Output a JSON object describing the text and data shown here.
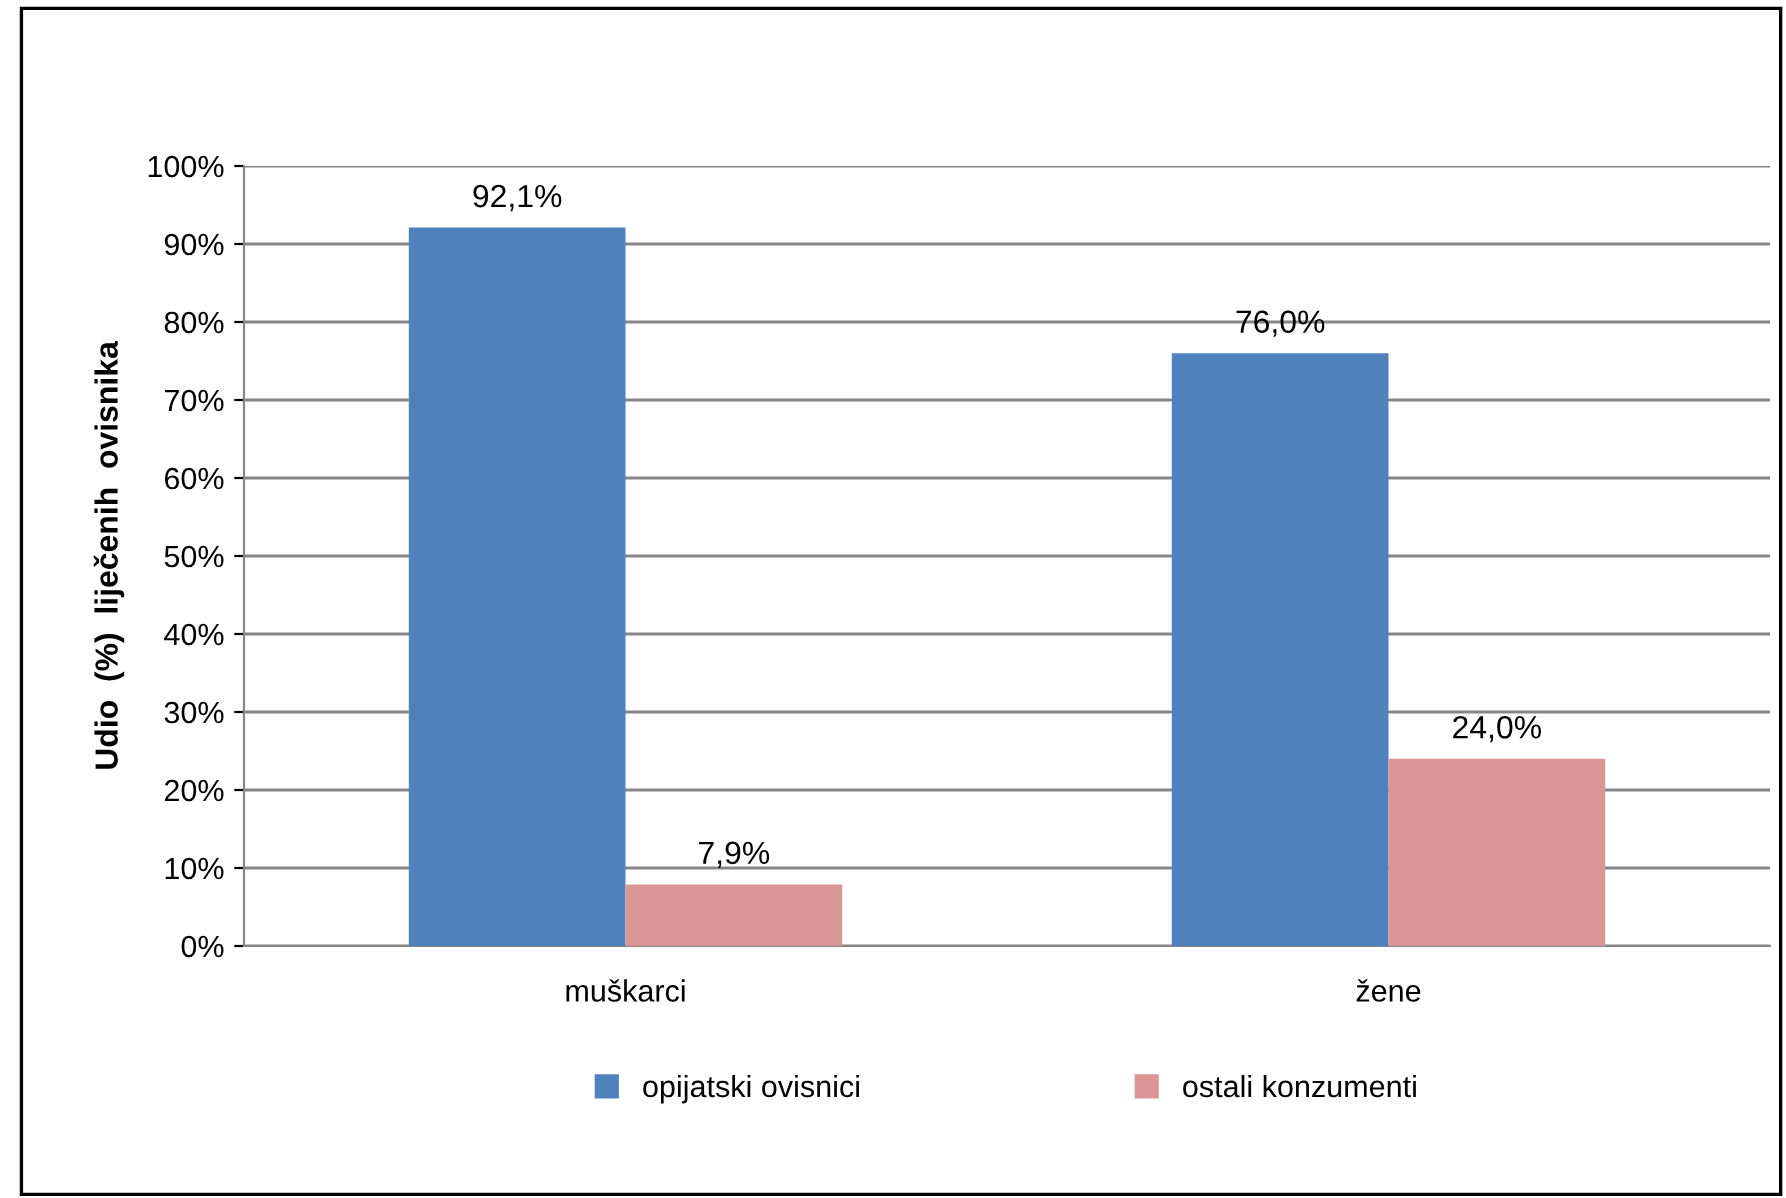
{
  "chart_data": {
    "type": "bar",
    "categories": [
      "muškarci",
      "žene"
    ],
    "series": [
      {
        "name": "opijatski ovisnici",
        "color": "#4f81bd",
        "values": [
          92.1,
          76.0
        ],
        "value_labels": [
          "92,1%",
          "76,0%"
        ]
      },
      {
        "name": "ostali konzumenti",
        "color": "#d99694",
        "values": [
          7.9,
          24.0
        ],
        "value_labels": [
          "7,9%",
          "24,0%"
        ]
      }
    ],
    "ylabel": "Udio  (%)  liječenih  ovisnika",
    "ylim": [
      0,
      100
    ],
    "yticks": [
      {
        "value": 0,
        "label": "0%"
      },
      {
        "value": 10,
        "label": "10%"
      },
      {
        "value": 20,
        "label": "20%"
      },
      {
        "value": 30,
        "label": "30%"
      },
      {
        "value": 40,
        "label": "40%"
      },
      {
        "value": 50,
        "label": "50%"
      },
      {
        "value": 60,
        "label": "60%"
      },
      {
        "value": 70,
        "label": "70%"
      },
      {
        "value": 80,
        "label": "80%"
      },
      {
        "value": 90,
        "label": "90%"
      },
      {
        "value": 100,
        "label": "100%"
      }
    ],
    "grid": "y",
    "legend": "bottom"
  }
}
